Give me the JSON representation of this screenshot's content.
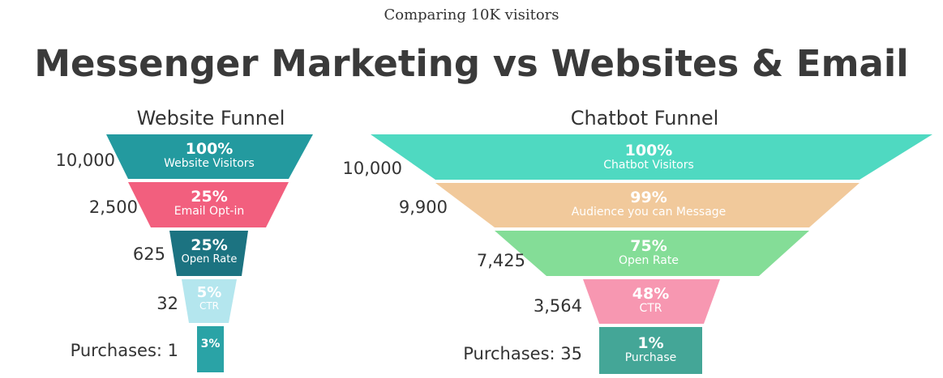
{
  "subtitle": "Comparing 10K visitors",
  "title": "Messenger Marketing vs Websites & Email",
  "website_funnel": {
    "title": "Website Funnel",
    "stages": [
      {
        "pct": "100%",
        "label": "Website Visitors",
        "count": "10,000",
        "color": "#239a9f"
      },
      {
        "pct": "25%",
        "label": "Email Opt-in",
        "count": "2,500",
        "color": "#f25f7e"
      },
      {
        "pct": "25%",
        "label": "Open Rate",
        "count": "625",
        "color": "#1c7381"
      },
      {
        "pct": "5%",
        "label": "CTR",
        "count": "32",
        "color": "#b4e6ee"
      },
      {
        "pct": "3%",
        "label": "",
        "count": "Purchases: 1",
        "color": "#2aa3a6"
      }
    ]
  },
  "chatbot_funnel": {
    "title": "Chatbot Funnel",
    "stages": [
      {
        "pct": "100%",
        "label": "Chatbot Visitors",
        "count": "10,000",
        "color": "#4fd9c1"
      },
      {
        "pct": "99%",
        "label": "Audience you can Message",
        "count": "9,900",
        "color": "#f1c99b"
      },
      {
        "pct": "75%",
        "label": "Open Rate",
        "count": "7,425",
        "color": "#84dd97"
      },
      {
        "pct": "48%",
        "label": "CTR",
        "count": "3,564",
        "color": "#f797b1"
      },
      {
        "pct": "1%",
        "label": "Purchase",
        "count": "Purchases: 35",
        "color": "#44a697"
      }
    ]
  }
}
